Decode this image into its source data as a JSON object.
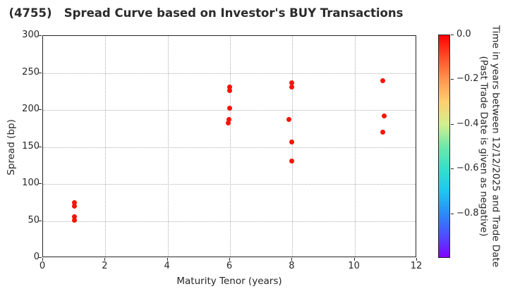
{
  "title": "(4755)   Spread Curve based on Investor's BUY Transactions",
  "chart_data": {
    "type": "scatter",
    "title": "(4755)   Spread Curve based on Investor's BUY Transactions",
    "xlabel": "Maturity Tenor (years)",
    "ylabel": "Spread (bp)",
    "xlim": [
      0,
      12
    ],
    "ylim": [
      0,
      300
    ],
    "xticks": [
      0,
      2,
      4,
      6,
      8,
      10,
      12
    ],
    "xticklabels": [
      "0",
      "2",
      "4",
      "6",
      "8",
      "10",
      "12"
    ],
    "yticks": [
      0,
      50,
      100,
      150,
      200,
      250,
      300
    ],
    "yticklabels": [
      "0",
      "50",
      "100",
      "150",
      "200",
      "250",
      "300"
    ],
    "grid": true,
    "point_color": "#f51505",
    "points": [
      {
        "tenor": 1.0,
        "spread": 75,
        "time": 0.0
      },
      {
        "tenor": 1.0,
        "spread": 70,
        "time": 0.0
      },
      {
        "tenor": 1.0,
        "spread": 56,
        "time": 0.0
      },
      {
        "tenor": 1.0,
        "spread": 51,
        "time": 0.0
      },
      {
        "tenor": 5.98,
        "spread": 231,
        "time": 0.0
      },
      {
        "tenor": 5.98,
        "spread": 226,
        "time": 0.0
      },
      {
        "tenor": 5.98,
        "spread": 202,
        "time": 0.0
      },
      {
        "tenor": 5.97,
        "spread": 187,
        "time": 0.0
      },
      {
        "tenor": 5.94,
        "spread": 182,
        "time": 0.0
      },
      {
        "tenor": 7.99,
        "spread": 237,
        "time": 0.0
      },
      {
        "tenor": 7.99,
        "spread": 231,
        "time": 0.0
      },
      {
        "tenor": 7.9,
        "spread": 187,
        "time": 0.0
      },
      {
        "tenor": 7.99,
        "spread": 157,
        "time": 0.0
      },
      {
        "tenor": 7.97,
        "spread": 131,
        "time": 0.0
      },
      {
        "tenor": 10.9,
        "spread": 240,
        "time": 0.0
      },
      {
        "tenor": 10.94,
        "spread": 192,
        "time": 0.0
      },
      {
        "tenor": 10.91,
        "spread": 170,
        "time": 0.0
      }
    ],
    "colorbar": {
      "label_line1": "Time in years between 12/12/2025 and Trade Date",
      "label_line2": "(Past Trade Date is given as negative)",
      "range": [
        0,
        -1
      ],
      "tick_values": [
        0,
        -0.2,
        -0.4,
        -0.6,
        -0.8
      ],
      "ticklabels": [
        "0.0",
        "−0.2",
        "−0.4",
        "−0.6",
        "−0.8"
      ],
      "gradient": [
        "#ff0000",
        "#ff4f29",
        "#ff964f",
        "#ffcf70",
        "#d3ef8e",
        "#70e8a9",
        "#35e0cb",
        "#1fc8f0",
        "#2b8df7",
        "#4d4fff",
        "#8000ff"
      ]
    }
  }
}
